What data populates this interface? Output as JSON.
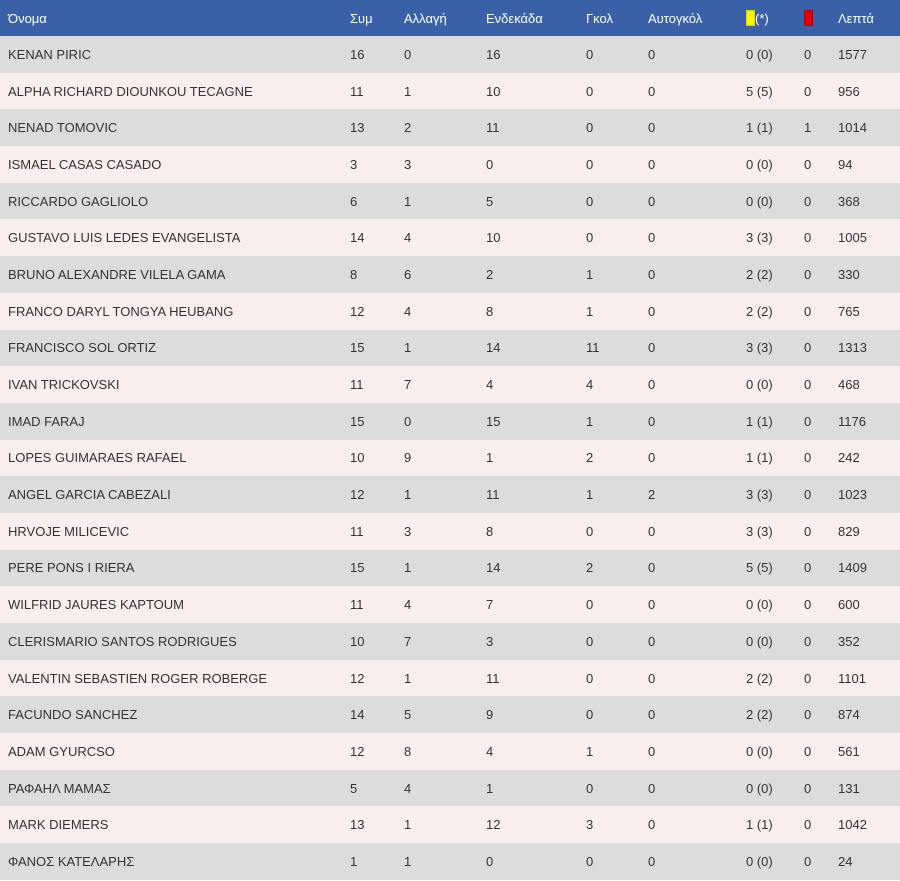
{
  "headers": {
    "name": "Όνομα",
    "apps": "Συμ",
    "subs": "Αλλαγή",
    "starts": "Ενδεκάδα",
    "goals": "Γκολ",
    "own_goals": "Αυτογκόλ",
    "yellow_suffix": "(*)",
    "minutes": "Λεπτά"
  },
  "colors": {
    "header_bg": "#3a61a8",
    "row_odd": "#dcdcdc",
    "row_even": "#f8eeee",
    "yellow_card": "#f7f700",
    "red_card": "#e00000"
  },
  "icons": {
    "yellow": "yellow-card-icon",
    "red": "red-card-icon"
  },
  "rows": [
    {
      "name": "KENAN PIRIC",
      "apps": "16",
      "subs": "0",
      "starts": "16",
      "goals": "0",
      "own_goals": "0",
      "yellow": "0 (0)",
      "red": "0",
      "minutes": "1577"
    },
    {
      "name": "ALPHA RICHARD DIOUNKOU TECAGNE",
      "apps": "11",
      "subs": "1",
      "starts": "10",
      "goals": "0",
      "own_goals": "0",
      "yellow": "5 (5)",
      "red": "0",
      "minutes": "956"
    },
    {
      "name": "NENAD TOMOVIC",
      "apps": "13",
      "subs": "2",
      "starts": "11",
      "goals": "0",
      "own_goals": "0",
      "yellow": "1 (1)",
      "red": "1",
      "minutes": "1014"
    },
    {
      "name": "ISMAEL CASAS CASADO",
      "apps": "3",
      "subs": "3",
      "starts": "0",
      "goals": "0",
      "own_goals": "0",
      "yellow": "0 (0)",
      "red": "0",
      "minutes": "94"
    },
    {
      "name": "RICCARDO GAGLIOLO",
      "apps": "6",
      "subs": "1",
      "starts": "5",
      "goals": "0",
      "own_goals": "0",
      "yellow": "0 (0)",
      "red": "0",
      "minutes": "368"
    },
    {
      "name": "GUSTAVO LUIS LEDES EVANGELISTA",
      "apps": "14",
      "subs": "4",
      "starts": "10",
      "goals": "0",
      "own_goals": "0",
      "yellow": "3 (3)",
      "red": "0",
      "minutes": "1005"
    },
    {
      "name": "BRUNO ALEXANDRE VILELA GAMA",
      "apps": "8",
      "subs": "6",
      "starts": "2",
      "goals": "1",
      "own_goals": "0",
      "yellow": "2 (2)",
      "red": "0",
      "minutes": "330"
    },
    {
      "name": "FRANCO DARYL TONGYA HEUBANG",
      "apps": "12",
      "subs": "4",
      "starts": "8",
      "goals": "1",
      "own_goals": "0",
      "yellow": "2 (2)",
      "red": "0",
      "minutes": "765"
    },
    {
      "name": "FRANCISCO SOL ORTIZ",
      "apps": "15",
      "subs": "1",
      "starts": "14",
      "goals": "11",
      "own_goals": "0",
      "yellow": "3 (3)",
      "red": "0",
      "minutes": "1313"
    },
    {
      "name": "IVAN TRICKOVSKI",
      "apps": "11",
      "subs": "7",
      "starts": "4",
      "goals": "4",
      "own_goals": "0",
      "yellow": "0 (0)",
      "red": "0",
      "minutes": "468"
    },
    {
      "name": "IMAD FARAJ",
      "apps": "15",
      "subs": "0",
      "starts": "15",
      "goals": "1",
      "own_goals": "0",
      "yellow": "1 (1)",
      "red": "0",
      "minutes": "1176"
    },
    {
      "name": "LOPES GUIMARAES RAFAEL",
      "apps": "10",
      "subs": "9",
      "starts": "1",
      "goals": "2",
      "own_goals": "0",
      "yellow": "1 (1)",
      "red": "0",
      "minutes": "242"
    },
    {
      "name": "ANGEL GARCIA CABEZALI",
      "apps": "12",
      "subs": "1",
      "starts": "11",
      "goals": "1",
      "own_goals": "2",
      "yellow": "3 (3)",
      "red": "0",
      "minutes": "1023"
    },
    {
      "name": "HRVOJE MILICEVIC",
      "apps": "11",
      "subs": "3",
      "starts": "8",
      "goals": "0",
      "own_goals": "0",
      "yellow": "3 (3)",
      "red": "0",
      "minutes": "829"
    },
    {
      "name": "PERE PONS I RIERA",
      "apps": "15",
      "subs": "1",
      "starts": "14",
      "goals": "2",
      "own_goals": "0",
      "yellow": "5 (5)",
      "red": "0",
      "minutes": "1409"
    },
    {
      "name": "WILFRID JAURES KAPTOUM",
      "apps": "11",
      "subs": "4",
      "starts": "7",
      "goals": "0",
      "own_goals": "0",
      "yellow": "0 (0)",
      "red": "0",
      "minutes": "600"
    },
    {
      "name": "CLERISMARIO SANTOS RODRIGUES",
      "apps": "10",
      "subs": "7",
      "starts": "3",
      "goals": "0",
      "own_goals": "0",
      "yellow": "0 (0)",
      "red": "0",
      "minutes": "352"
    },
    {
      "name": "VALENTIN SEBASTIEN ROGER ROBERGE",
      "apps": "12",
      "subs": "1",
      "starts": "11",
      "goals": "0",
      "own_goals": "0",
      "yellow": "2 (2)",
      "red": "0",
      "minutes": "1101"
    },
    {
      "name": "FACUNDO SANCHEZ",
      "apps": "14",
      "subs": "5",
      "starts": "9",
      "goals": "0",
      "own_goals": "0",
      "yellow": "2 (2)",
      "red": "0",
      "minutes": "874"
    },
    {
      "name": "ADAM GYURCSO",
      "apps": "12",
      "subs": "8",
      "starts": "4",
      "goals": "1",
      "own_goals": "0",
      "yellow": "0 (0)",
      "red": "0",
      "minutes": "561"
    },
    {
      "name": "ΡΑΦΑΗΛ ΜΑΜΑΣ",
      "apps": "5",
      "subs": "4",
      "starts": "1",
      "goals": "0",
      "own_goals": "0",
      "yellow": "0 (0)",
      "red": "0",
      "minutes": "131"
    },
    {
      "name": "MARK DIEMERS",
      "apps": "13",
      "subs": "1",
      "starts": "12",
      "goals": "3",
      "own_goals": "0",
      "yellow": "1 (1)",
      "red": "0",
      "minutes": "1042"
    },
    {
      "name": "ΦΑΝΟΣ ΚΑΤΕΛΑΡΗΣ",
      "apps": "1",
      "subs": "1",
      "starts": "0",
      "goals": "0",
      "own_goals": "0",
      "yellow": "0 (0)",
      "red": "0",
      "minutes": "24"
    }
  ]
}
